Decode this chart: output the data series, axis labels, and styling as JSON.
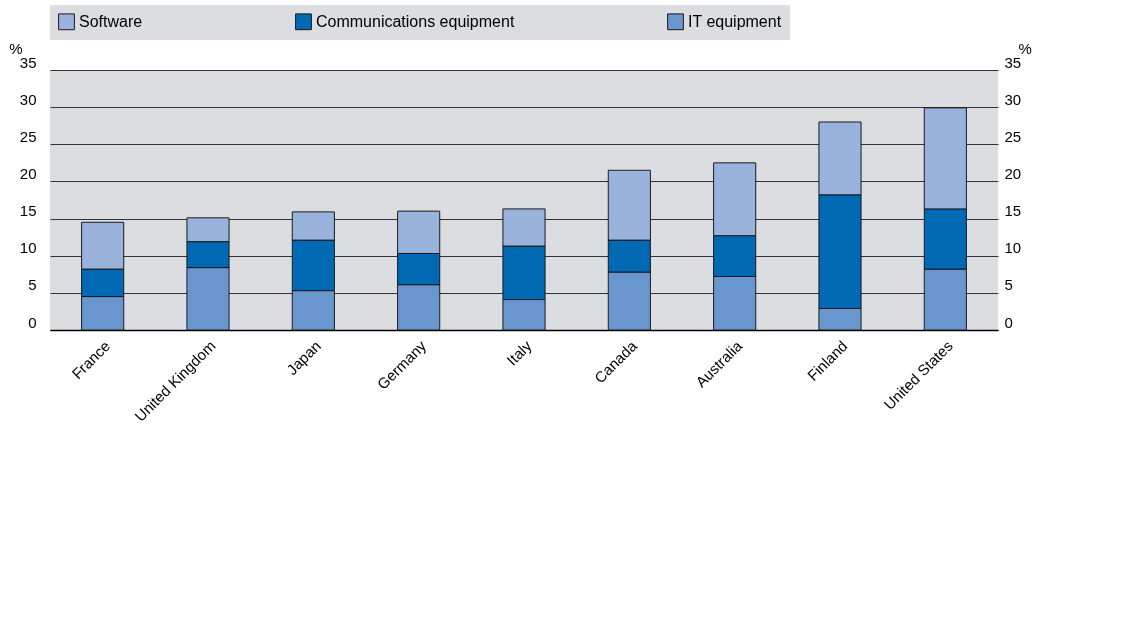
{
  "chart_data": {
    "type": "bar",
    "stacked": true,
    "ylabel": "%",
    "y2label": "%",
    "categories": [
      "France",
      "United Kingdom",
      "Japan",
      "Germany",
      "Italy",
      "Canada",
      "Australia",
      "Finland",
      "United States"
    ],
    "series": [
      {
        "name": "IT equipment",
        "color": "#6a96d0",
        "values": [
          4.5,
          8.4,
          5.3,
          6.1,
          4.1,
          7.8,
          7.2,
          2.9,
          8.2
        ]
      },
      {
        "name": "Communications equipment",
        "color": "#0069b4",
        "values": [
          3.7,
          3.5,
          6.8,
          4.2,
          7.2,
          4.3,
          5.5,
          15.3,
          8.1
        ]
      },
      {
        "name": "Software",
        "color": "#9ab3dd",
        "values": [
          6.3,
          3.2,
          3.8,
          5.7,
          5.0,
          9.4,
          9.8,
          9.8,
          13.6
        ]
      }
    ],
    "ylim": [
      0,
      35
    ],
    "yticks": [
      0,
      5,
      10,
      15,
      20,
      25,
      30,
      35
    ],
    "y2lim": [
      0,
      35
    ],
    "y2ticks": [
      0,
      5,
      10,
      15,
      20,
      25,
      30,
      35
    ],
    "grid": "y",
    "legend": "top"
  }
}
